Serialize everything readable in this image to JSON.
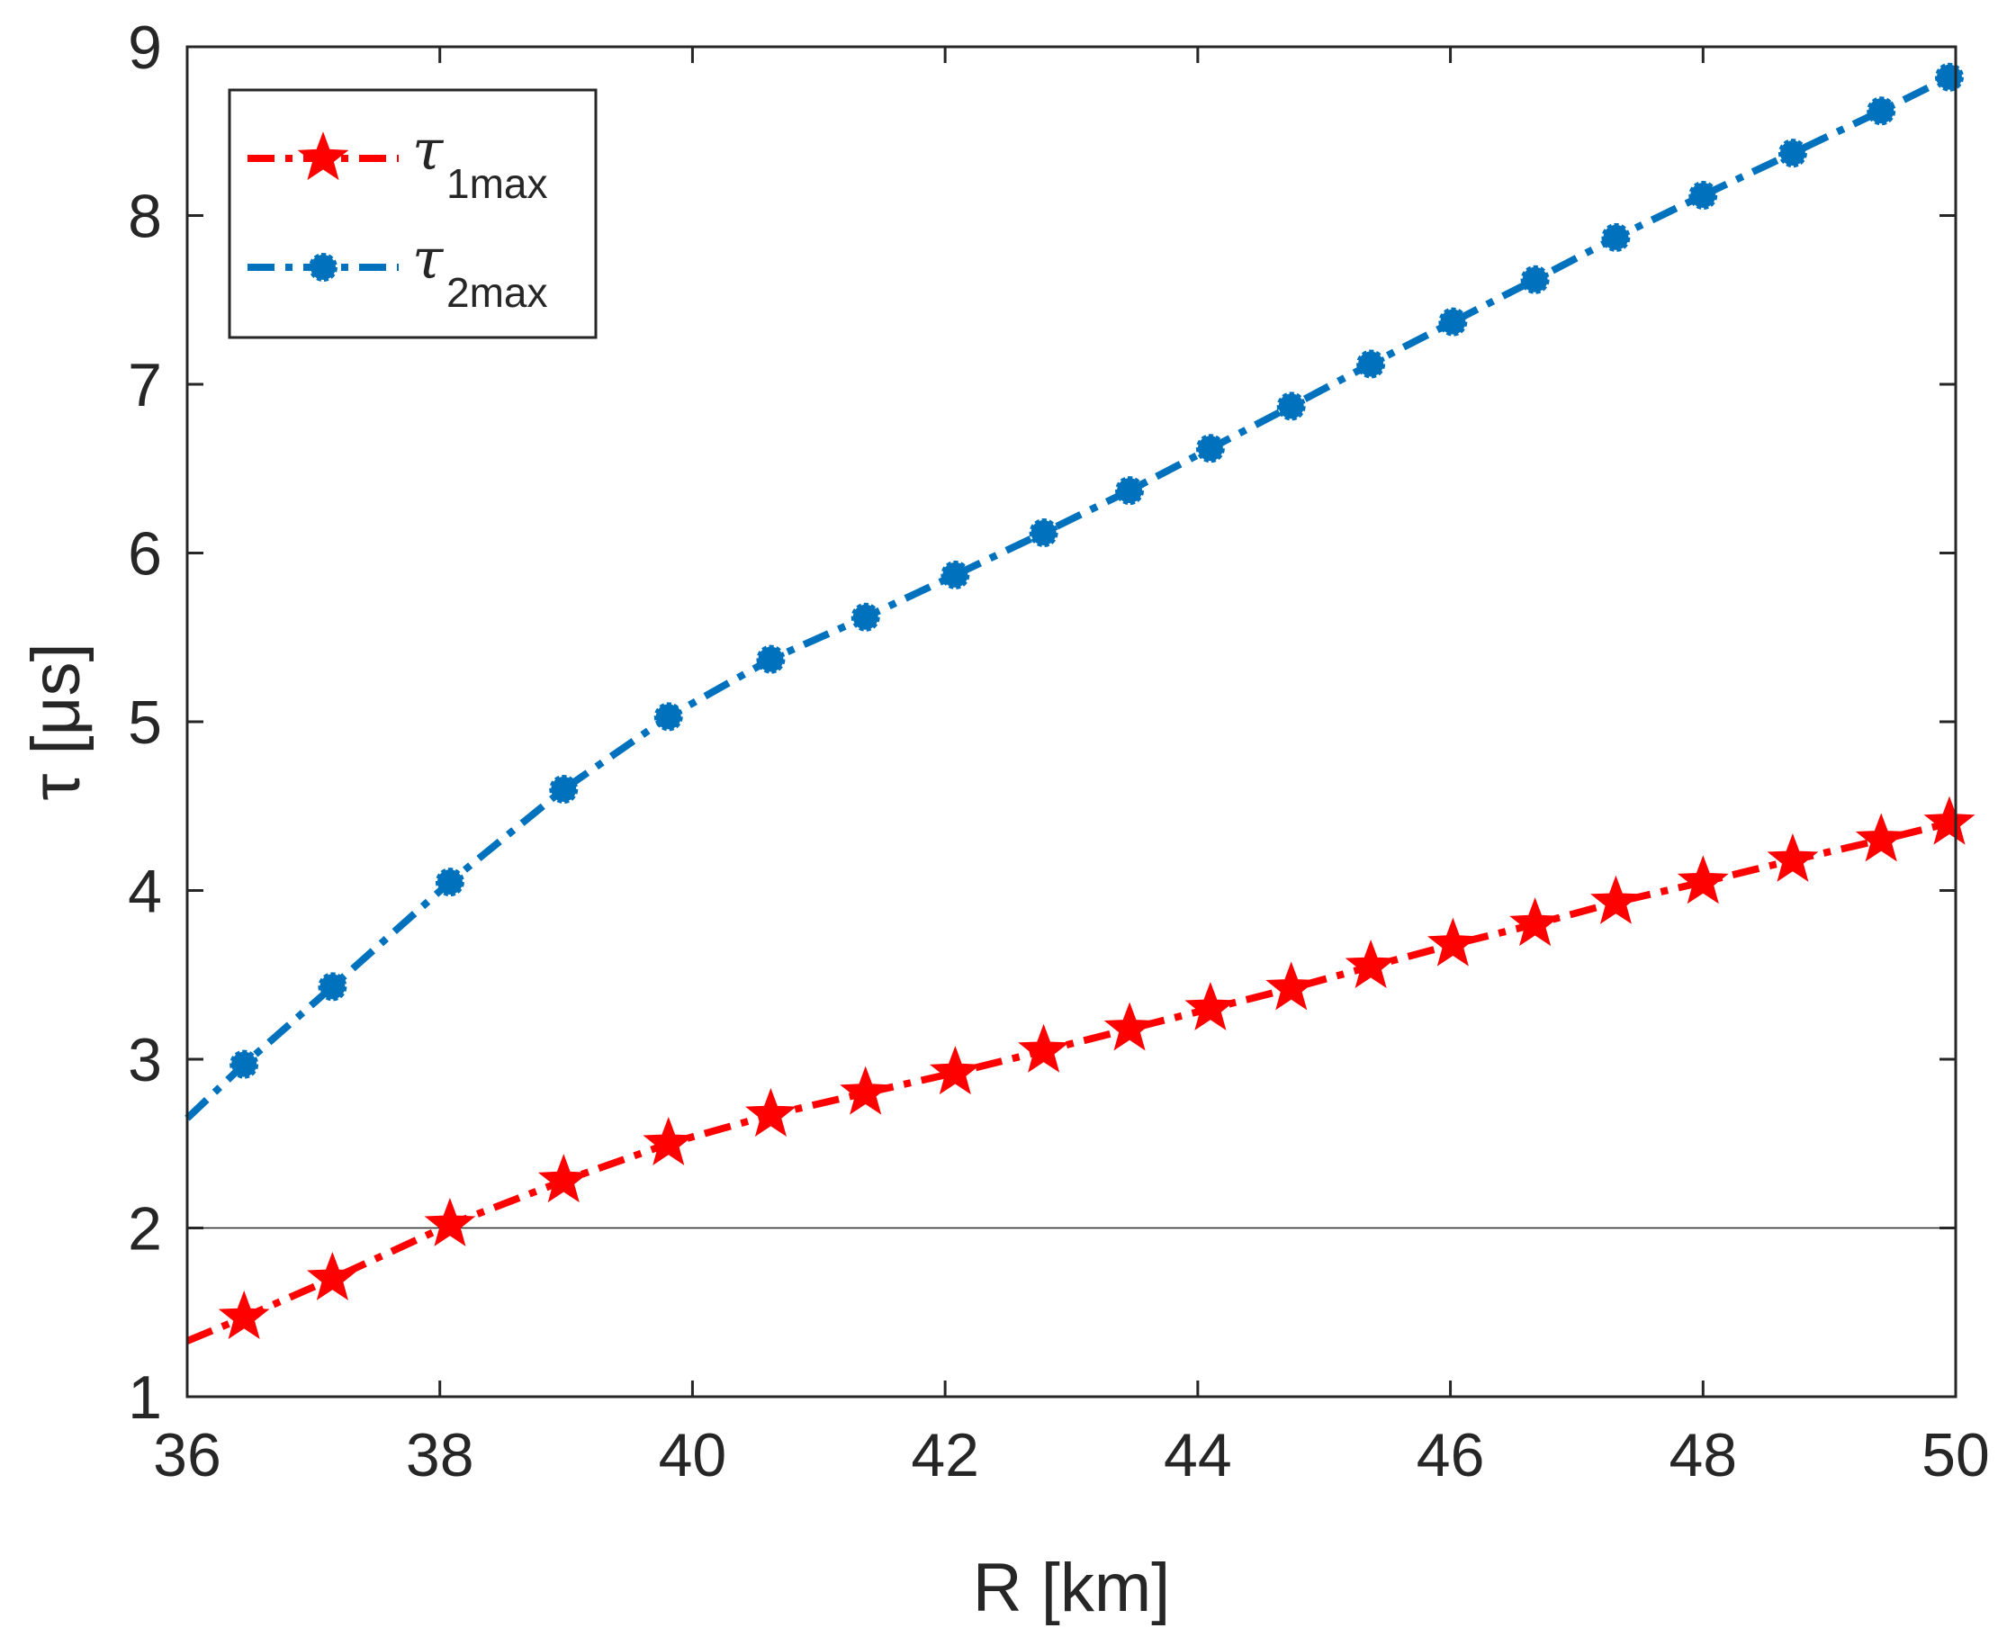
{
  "chart_data": {
    "type": "line",
    "title": "",
    "xlabel": "R [km]",
    "ylabel": "τ [μs]",
    "xlim": [
      36,
      50
    ],
    "ylim": [
      1,
      9
    ],
    "xticks": [
      "36",
      "38",
      "40",
      "42",
      "44",
      "46",
      "48",
      "50"
    ],
    "yticks": [
      "1",
      "2",
      "3",
      "4",
      "5",
      "6",
      "7",
      "8",
      "9"
    ],
    "reference_line": {
      "y": 2
    },
    "legend_position": "top-left",
    "series": [
      {
        "name": "τ1max",
        "symbol": "τ",
        "subscript": "1max",
        "color": "#ff0000",
        "marker": "star",
        "x": [
          36.0,
          36.45,
          37.15,
          38.08,
          38.98,
          39.81,
          40.62,
          41.37,
          42.08,
          42.78,
          43.46,
          44.1,
          44.74,
          45.37,
          46.02,
          46.67,
          47.31,
          48.0,
          48.71,
          49.41,
          49.95
        ],
        "y": [
          1.33,
          1.47,
          1.7,
          2.02,
          2.28,
          2.5,
          2.67,
          2.8,
          2.92,
          3.05,
          3.18,
          3.3,
          3.42,
          3.55,
          3.68,
          3.8,
          3.93,
          4.05,
          4.18,
          4.3,
          4.4
        ]
      },
      {
        "name": "τ2max",
        "symbol": "τ",
        "subscript": "2max",
        "color": "#0072bd",
        "marker": "circle",
        "x": [
          36.0,
          36.45,
          37.15,
          38.08,
          38.98,
          39.81,
          40.62,
          41.37,
          42.08,
          42.78,
          43.46,
          44.1,
          44.74,
          45.37,
          46.02,
          46.67,
          47.31,
          48.0,
          48.71,
          49.41,
          49.95
        ],
        "y": [
          2.65,
          2.97,
          3.43,
          4.05,
          4.6,
          5.03,
          5.37,
          5.62,
          5.87,
          6.12,
          6.37,
          6.62,
          6.87,
          7.12,
          7.37,
          7.62,
          7.87,
          8.12,
          8.37,
          8.62,
          8.82
        ]
      }
    ]
  }
}
